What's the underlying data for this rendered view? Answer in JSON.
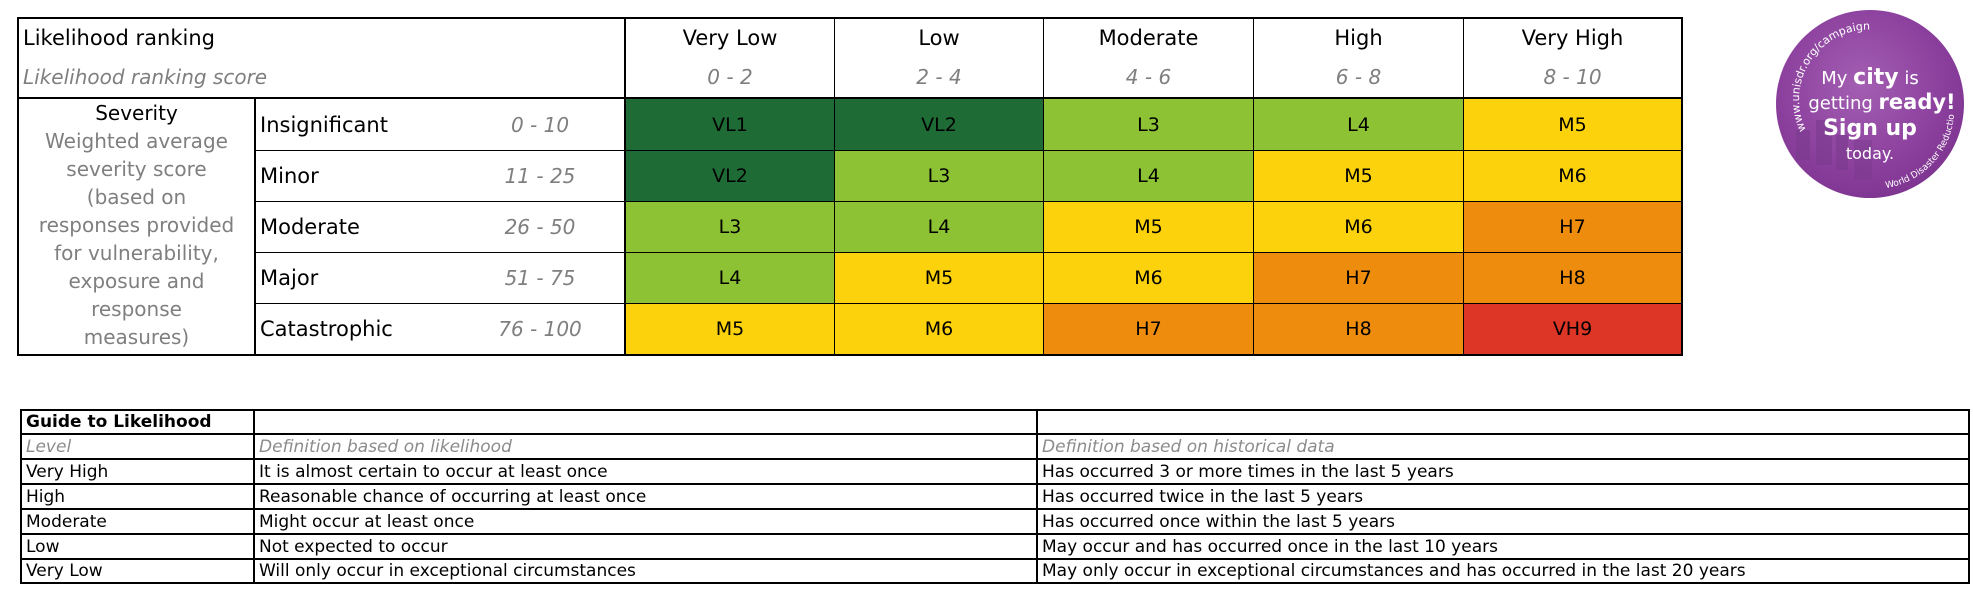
{
  "matrix": {
    "ranking_title": "Likelihood ranking",
    "ranking_subtitle": "Likelihood ranking score",
    "levels": [
      {
        "name": "Very Low",
        "range": "0 - 2"
      },
      {
        "name": "Low",
        "range": "2 - 4"
      },
      {
        "name": "Moderate",
        "range": "4 - 6"
      },
      {
        "name": "High",
        "range": "6 - 8"
      },
      {
        "name": "Very High",
        "range": "8 - 10"
      }
    ],
    "severity_title": "Severity",
    "severity_desc_lines": [
      "Weighted average",
      "severity score",
      "(based on",
      "responses provided",
      "for vulnerability,",
      "exposure and",
      "response",
      "measures)"
    ],
    "severities": [
      {
        "name": "Insignificant",
        "range": "0 - 10",
        "cells": [
          "VL1",
          "VL2",
          "L3",
          "L4",
          "M5"
        ]
      },
      {
        "name": "Minor",
        "range": "11 - 25",
        "cells": [
          "VL2",
          "L3",
          "L4",
          "M5",
          "M6"
        ]
      },
      {
        "name": "Moderate",
        "range": "26 - 50",
        "cells": [
          "L3",
          "L4",
          "M5",
          "M6",
          "H7"
        ]
      },
      {
        "name": "Major",
        "range": "51 - 75",
        "cells": [
          "L4",
          "M5",
          "M6",
          "H7",
          "H8"
        ]
      },
      {
        "name": "Catastrophic",
        "range": "76 - 100",
        "cells": [
          "M5",
          "M6",
          "H7",
          "H8",
          "VH9"
        ]
      }
    ],
    "colors": {
      "VL": "#1f6b35",
      "L": "#8cc234",
      "M": "#fcd20c",
      "H": "#ed8c0d",
      "VH": "#dd3526"
    }
  },
  "badge": {
    "url": "www.unisdr.org/campaign",
    "line1a": "My",
    "line1b": "city",
    "line1c": "is",
    "line2a": "getting",
    "line2b": "ready!",
    "line3": "Sign up",
    "line4": "today.",
    "footer": "World Disaster Reduction Campaign"
  },
  "guide": {
    "title": "Guide to Likelihood",
    "headers": [
      "Level",
      "Definition based on likelihood",
      "Definition based on historical data"
    ],
    "rows": [
      {
        "level": "Very High",
        "likelihood": "It is almost certain to occur at least once",
        "historical": "Has occurred 3 or more times in the last 5 years"
      },
      {
        "level": "High",
        "likelihood": "Reasonable chance of occurring at least once",
        "historical": "Has occurred twice in the last 5 years"
      },
      {
        "level": "Moderate",
        "likelihood": "Might occur at least once",
        "historical": "Has occurred once within the last 5 years"
      },
      {
        "level": "Low",
        "likelihood": "Not expected to occur",
        "historical": "May occur and has occurred once in the last 10 years"
      },
      {
        "level": "Very Low",
        "likelihood": "Will only occur in exceptional circumstances",
        "historical": "May only occur in exceptional circumstances and has occurred in the last 20 years"
      }
    ]
  }
}
